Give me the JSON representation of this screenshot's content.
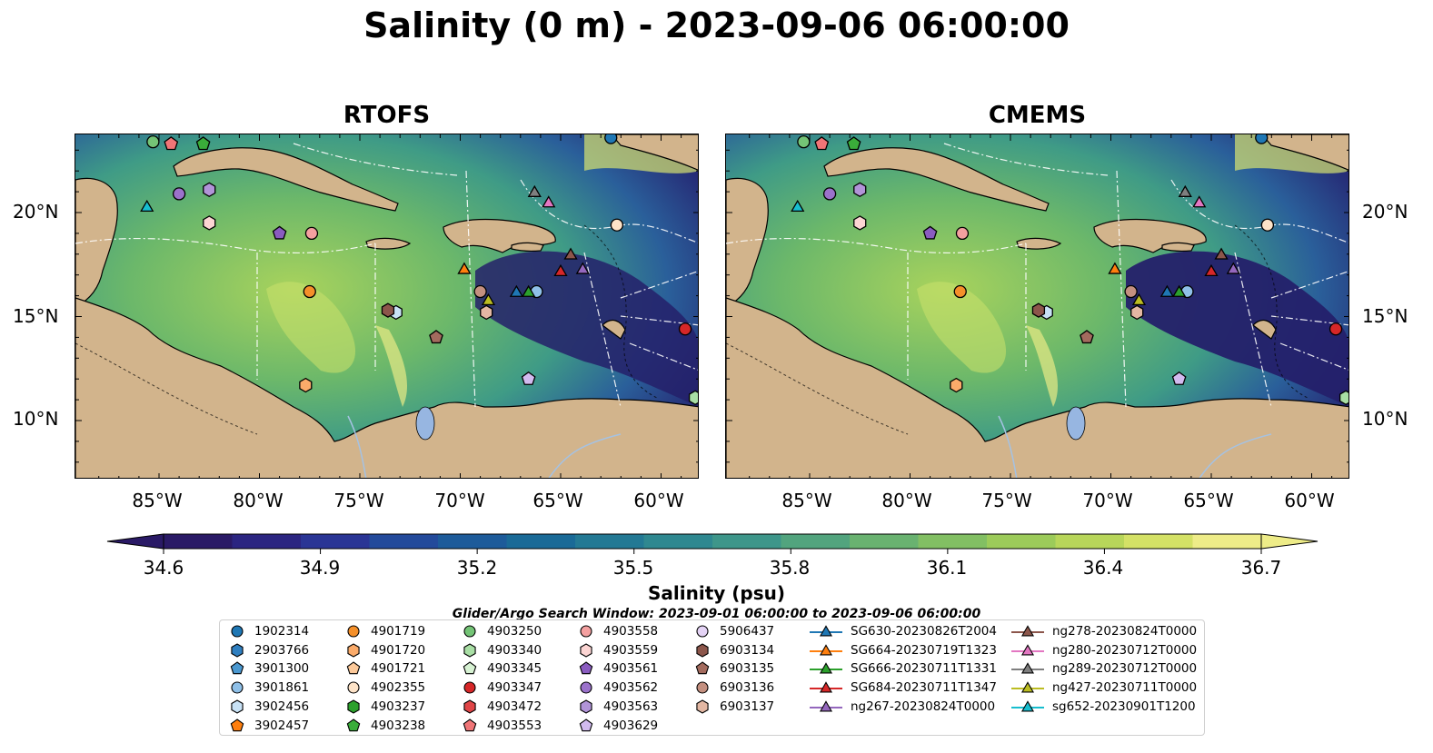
{
  "title": "Salinity (0 m) - 2023-09-06 06:00:00",
  "panels": [
    {
      "title": "RTOFS"
    },
    {
      "title": "CMEMS"
    }
  ],
  "lon_ticks": [
    "85°W",
    "80°W",
    "75°W",
    "70°W",
    "65°W",
    "60°W"
  ],
  "lat_ticks": [
    "20°N",
    "15°N",
    "10°N"
  ],
  "colorbar": {
    "label": "Salinity (psu)",
    "ticks": [
      "34.6",
      "34.9",
      "35.2",
      "35.5",
      "35.8",
      "36.1",
      "36.4",
      "36.7"
    ],
    "colors": [
      "#2a1a66",
      "#2b2581",
      "#2a3595",
      "#234a9b",
      "#1d5b9a",
      "#1a6a97",
      "#237994",
      "#2f8890",
      "#3e968a",
      "#52a47e",
      "#69b270",
      "#82bf63",
      "#9ccb5a",
      "#b8d65a",
      "#d4e166",
      "#eeec88"
    ]
  },
  "search_window": "Glider/Argo Search Window: 2023-09-01 06:00:00 to 2023-09-06 06:00:00",
  "colors": {
    "land": "#d2b48c",
    "lake": "#97b6e1",
    "river": "#a5c2e3"
  },
  "legend": [
    {
      "label": "1902314",
      "marker": "circle",
      "color": "#1f77b4"
    },
    {
      "label": "2903766",
      "marker": "hexagon",
      "color": "#2f7fc0"
    },
    {
      "label": "3901300",
      "marker": "pentagon",
      "color": "#4a98d0"
    },
    {
      "label": "3901861",
      "marker": "circle",
      "color": "#8fc0e8"
    },
    {
      "label": "3902456",
      "marker": "hexagon",
      "color": "#c8e2f6"
    },
    {
      "label": "3902457",
      "marker": "pentagon",
      "color": "#ff7f0e"
    },
    {
      "label": "4901719",
      "marker": "circle",
      "color": "#f5902a"
    },
    {
      "label": "4901720",
      "marker": "hexagon",
      "color": "#fbab6a"
    },
    {
      "label": "4901721",
      "marker": "pentagon",
      "color": "#fcc99a"
    },
    {
      "label": "4902355",
      "marker": "circle",
      "color": "#fde3c8"
    },
    {
      "label": "4903237",
      "marker": "hexagon",
      "color": "#2ca02c"
    },
    {
      "label": "4903238",
      "marker": "pentagon",
      "color": "#3aad3a"
    },
    {
      "label": "4903250",
      "marker": "circle",
      "color": "#74c476"
    },
    {
      "label": "4903340",
      "marker": "hexagon",
      "color": "#a9dfa5"
    },
    {
      "label": "4903345",
      "marker": "pentagon",
      "color": "#d7f2d3"
    },
    {
      "label": "4903347",
      "marker": "circle",
      "color": "#d62728"
    },
    {
      "label": "4903472",
      "marker": "hexagon",
      "color": "#e04547"
    },
    {
      "label": "4903553",
      "marker": "pentagon",
      "color": "#f07577"
    },
    {
      "label": "4903558",
      "marker": "circle",
      "color": "#f4a0a0"
    },
    {
      "label": "4903559",
      "marker": "hexagon",
      "color": "#fcd5d3"
    },
    {
      "label": "4903561",
      "marker": "pentagon",
      "color": "#8a5cc0"
    },
    {
      "label": "4903562",
      "marker": "circle",
      "color": "#9b72cb"
    },
    {
      "label": "4903563",
      "marker": "hexagon",
      "color": "#b194d8"
    },
    {
      "label": "4903629",
      "marker": "pentagon",
      "color": "#d2bbef"
    },
    {
      "label": "5906437",
      "marker": "circle",
      "color": "#e4d3f5"
    },
    {
      "label": "6903134",
      "marker": "hexagon",
      "color": "#8c564b"
    },
    {
      "label": "6903135",
      "marker": "pentagon",
      "color": "#a36b5e"
    },
    {
      "label": "6903136",
      "marker": "circle",
      "color": "#c49080"
    },
    {
      "label": "6903137",
      "marker": "hexagon",
      "color": "#e3b7a3"
    },
    {
      "label": "SG630-20230826T2004",
      "marker": "triangle",
      "color": "#1f77b4"
    },
    {
      "label": "SG664-20230719T1323",
      "marker": "triangle",
      "color": "#ff7f0e"
    },
    {
      "label": "SG666-20230711T1331",
      "marker": "triangle",
      "color": "#2ca02c"
    },
    {
      "label": "SG684-20230711T1347",
      "marker": "triangle",
      "color": "#d62728"
    },
    {
      "label": "ng267-20230824T0000",
      "marker": "triangle",
      "color": "#9467bd"
    },
    {
      "label": "ng278-20230824T0000",
      "marker": "triangle",
      "color": "#8c564b"
    },
    {
      "label": "ng280-20230712T0000",
      "marker": "triangle",
      "color": "#e377c2"
    },
    {
      "label": "ng289-20230712T0000",
      "marker": "triangle",
      "color": "#7f7f7f"
    },
    {
      "label": "ng427-20230711T0000",
      "marker": "triangle",
      "color": "#bcbd22"
    },
    {
      "label": "sg652-20230901T1200",
      "marker": "triangle",
      "color": "#17becf"
    }
  ],
  "observations": [
    {
      "id": "1902314",
      "lon": -62.5,
      "lat": 23.6
    },
    {
      "id": "3901861",
      "lon": -66.2,
      "lat": 16.2
    },
    {
      "id": "3902456",
      "lon": -73.2,
      "lat": 15.2
    },
    {
      "id": "4901719",
      "lon": -77.5,
      "lat": 16.2
    },
    {
      "id": "4901720",
      "lon": -77.7,
      "lat": 11.7
    },
    {
      "id": "4902355",
      "lon": -62.2,
      "lat": 19.4
    },
    {
      "id": "4903250",
      "lon": -85.3,
      "lat": 23.4
    },
    {
      "id": "4903238",
      "lon": -82.8,
      "lat": 23.3
    },
    {
      "id": "4903340",
      "lon": -58.3,
      "lat": 11.1
    },
    {
      "id": "4903347",
      "lon": -58.8,
      "lat": 14.4
    },
    {
      "id": "4903553",
      "lon": -84.4,
      "lat": 23.3
    },
    {
      "id": "4903558",
      "lon": -77.4,
      "lat": 19.0
    },
    {
      "id": "4903559",
      "lon": -82.5,
      "lat": 19.5
    },
    {
      "id": "4903561",
      "lon": -79.0,
      "lat": 19.0
    },
    {
      "id": "4903562",
      "lon": -84.0,
      "lat": 20.9
    },
    {
      "id": "4903563",
      "lon": -82.5,
      "lat": 21.1
    },
    {
      "id": "4903629",
      "lon": -66.6,
      "lat": 12.0
    },
    {
      "id": "6903134",
      "lon": -73.6,
      "lat": 15.3
    },
    {
      "id": "6903135",
      "lon": -71.2,
      "lat": 14.0
    },
    {
      "id": "6903136",
      "lon": -69.0,
      "lat": 16.2
    },
    {
      "id": "6903137",
      "lon": -68.7,
      "lat": 15.2
    },
    {
      "id": "SG630-20230826T2004",
      "lon": -67.2,
      "lat": 16.2
    },
    {
      "id": "SG664-20230719T1323",
      "lon": -69.8,
      "lat": 17.3
    },
    {
      "id": "SG666-20230711T1331",
      "lon": -66.6,
      "lat": 16.2
    },
    {
      "id": "SG684-20230711T1347",
      "lon": -65.0,
      "lat": 17.2
    },
    {
      "id": "ng267-20230824T0000",
      "lon": -63.9,
      "lat": 17.3
    },
    {
      "id": "ng278-20230824T0000",
      "lon": -64.5,
      "lat": 18.0
    },
    {
      "id": "ng280-20230712T0000",
      "lon": -65.6,
      "lat": 20.5
    },
    {
      "id": "ng289-20230712T0000",
      "lon": -66.3,
      "lat": 21.0
    },
    {
      "id": "ng427-20230711T0000",
      "lon": -68.6,
      "lat": 15.8
    },
    {
      "id": "sg652-20230901T1200",
      "lon": -85.6,
      "lat": 20.3
    }
  ]
}
